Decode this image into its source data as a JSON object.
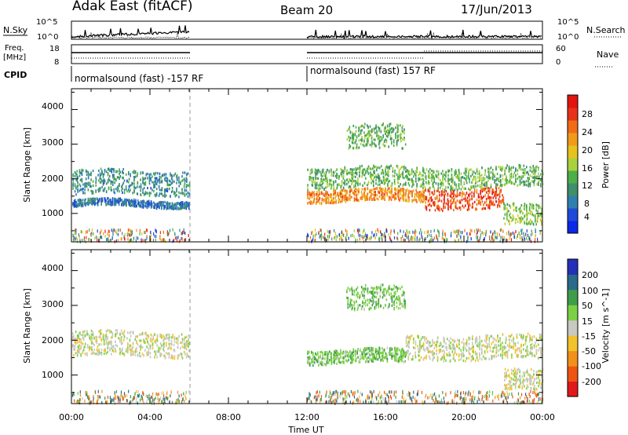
{
  "header": {
    "station": "Adak East (fitACF)",
    "beam": "Beam 20",
    "date": "17/Jun/2013"
  },
  "top_panels": {
    "nsky_label": "N.Sky",
    "nsky_ticks": [
      "10^5",
      "10^0"
    ],
    "nsearch_label": "N.Search",
    "nsearch_ticks": [
      "10^5",
      "10^0"
    ],
    "freq_label_1": "Freq.",
    "freq_label_2": "[MHz]",
    "freq_ticks": [
      "18",
      "8"
    ],
    "nave_label": "Nave",
    "nave_ticks": [
      "60",
      "0"
    ],
    "cpid_label": "CPID",
    "cpid_segments": [
      "normalsound (fast) -157 RF",
      "normalsound (fast) 157 RF"
    ]
  },
  "chart_data": [
    {
      "type": "heatmap",
      "title": "",
      "xlabel": "Time UT",
      "ylabel": "Slant Range [km]",
      "xlim": [
        0,
        24
      ],
      "ylim": [
        180,
        4600
      ],
      "x_ticks": [
        "00:00",
        "04:00",
        "08:00",
        "12:00",
        "16:00",
        "20:00",
        "00:00"
      ],
      "y_ticks": [
        "4000",
        "3000",
        "2000",
        "1000"
      ],
      "data_gap_hours": [
        6,
        12
      ],
      "colorbar": {
        "label": "Power [dB]",
        "ticks": [
          "28",
          "24",
          "20",
          "16",
          "12",
          "8",
          "4"
        ],
        "range": [
          0,
          30
        ]
      },
      "echo_bands": [
        {
          "t_start": 0,
          "t_end": 6,
          "range_km": [
            1500,
            2200
          ],
          "power_db": 8
        },
        {
          "t_start": 0,
          "t_end": 6,
          "range_km": [
            1150,
            1350
          ],
          "power_db": 6
        },
        {
          "t_start": 12,
          "t_end": 18,
          "range_km": [
            1300,
            1650
          ],
          "power_db": 22
        },
        {
          "t_start": 18,
          "t_end": 22,
          "range_km": [
            1100,
            1700
          ],
          "power_db": 26
        },
        {
          "t_start": 12,
          "t_end": 24,
          "range_km": [
            1700,
            2300
          ],
          "power_db": 12
        },
        {
          "t_start": 14,
          "t_end": 17,
          "range_km": [
            2800,
            3500
          ],
          "power_db": 12
        },
        {
          "t_start": 22,
          "t_end": 24,
          "range_km": [
            600,
            1200
          ],
          "power_db": 14
        }
      ]
    },
    {
      "type": "heatmap",
      "title": "",
      "xlabel": "Time UT",
      "ylabel": "Slant Range [km]",
      "xlim": [
        0,
        24
      ],
      "ylim": [
        180,
        4600
      ],
      "x_ticks": [
        "00:00",
        "04:00",
        "08:00",
        "12:00",
        "16:00",
        "20:00",
        "00:00"
      ],
      "y_ticks": [
        "4000",
        "3000",
        "2000",
        "1000"
      ],
      "colorbar": {
        "label": "Velocity [m s^-1]",
        "ticks": [
          "200",
          "100",
          "50",
          "15",
          "-15",
          "-50",
          "-100",
          "-200"
        ],
        "range": [
          -250,
          250
        ]
      },
      "echo_bands": [
        {
          "t_start": 0,
          "t_end": 6,
          "range_km": [
            1500,
            2200
          ],
          "velocity": 0
        },
        {
          "t_start": 12,
          "t_end": 17,
          "range_km": [
            1300,
            1700
          ],
          "velocity": 40
        },
        {
          "t_start": 14,
          "t_end": 17,
          "range_km": [
            2800,
            3500
          ],
          "velocity": 40
        },
        {
          "t_start": 17,
          "t_end": 24,
          "range_km": [
            1400,
            2100
          ],
          "velocity": 0
        },
        {
          "t_start": 22,
          "t_end": 24,
          "range_km": [
            500,
            1100
          ],
          "velocity": 0
        }
      ]
    }
  ]
}
